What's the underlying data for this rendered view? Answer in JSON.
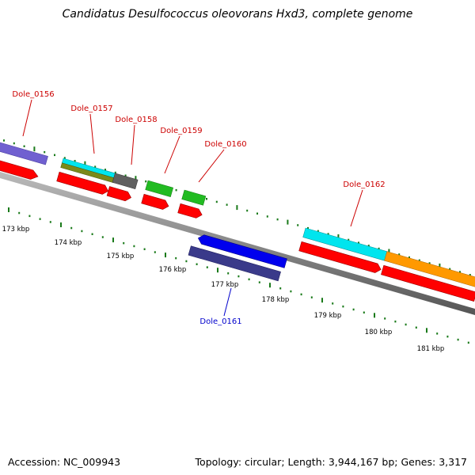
{
  "title": "Candidatus Desulfococcus oleovorans Hxd3, complete genome",
  "accession_label": "Accession:",
  "accession": "NC_009943",
  "topology_label": "Topology:",
  "topology": "circular",
  "length_label": "Length:",
  "length": "3,944,167 bp",
  "genes_label": "Genes:",
  "genes": "3,317",
  "genes_forward": [
    {
      "label": "Dole_0156",
      "color": "#cc0000"
    },
    {
      "label": "Dole_0157",
      "color": "#cc0000"
    },
    {
      "label": "Dole_0158",
      "color": "#cc0000"
    },
    {
      "label": "Dole_0159",
      "color": "#cc0000"
    },
    {
      "label": "Dole_0160",
      "color": "#cc0000"
    },
    {
      "label": "Dole_0162",
      "color": "#cc0000"
    }
  ],
  "genes_reverse": [
    {
      "label": "Dole_0161",
      "color": "#0000cc"
    }
  ],
  "ticks": [
    "173 kbp",
    "174 kbp",
    "175 kbp",
    "176 kbp",
    "177 kbp",
    "178 kbp",
    "179 kbp",
    "180 kbp",
    "181 kbp"
  ],
  "colors": {
    "cds_red": "#ff0000",
    "backbone": "#888888",
    "tick": "#1a7a1a",
    "purple": "#7060d0",
    "cyan": "#00e5ee",
    "olive": "#7a8a1a",
    "gray": "#606060",
    "green": "#22bb22",
    "blue": "#0000ee",
    "navy": "#3a3a8a",
    "orange": "#ff9900"
  }
}
